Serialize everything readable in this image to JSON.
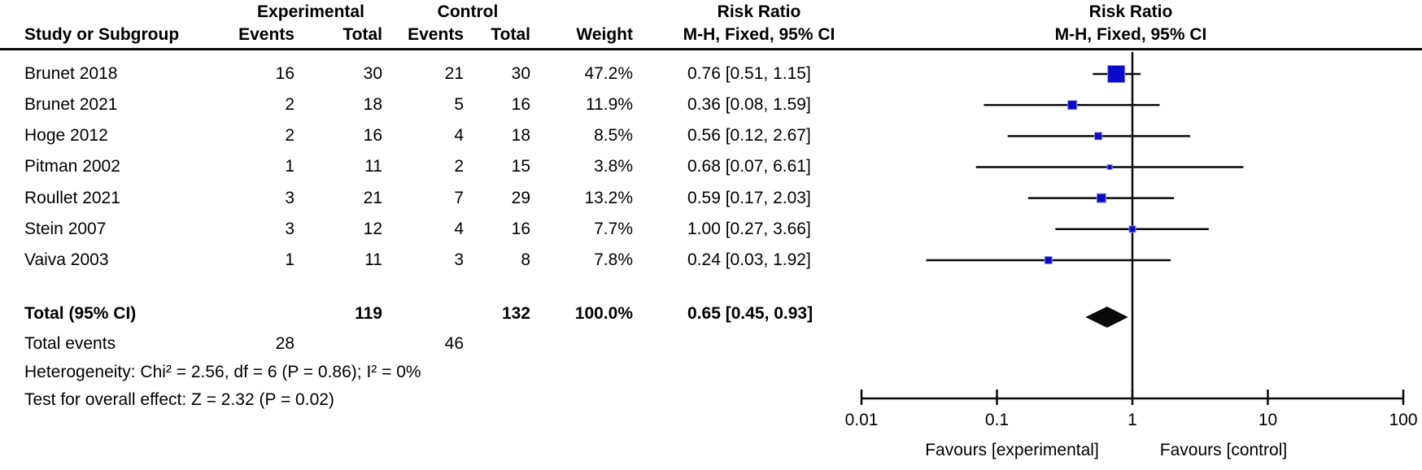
{
  "table": {
    "headers": {
      "experimental": "Experimental",
      "control": "Control",
      "risk_ratio_left": "Risk Ratio",
      "risk_ratio_right": "Risk Ratio",
      "study_or_subgroup": "Study or Subgroup",
      "events_experimental": "Events",
      "total_experimental": "Total",
      "events_control": "Events",
      "total_control": "Total",
      "weight": "Weight",
      "mh_fixed_left": "M-H, Fixed, 95% CI",
      "mh_fixed_right": "M-H, Fixed, 95% CI"
    },
    "rows": [
      {
        "study": "Brunet 2018",
        "e_events": "16",
        "e_total": "30",
        "c_events": "21",
        "c_total": "30",
        "weight": "47.2%",
        "ci_text": "0.76 [0.51, 1.15]"
      },
      {
        "study": "Brunet 2021",
        "e_events": "2",
        "e_total": "18",
        "c_events": "5",
        "c_total": "16",
        "weight": "11.9%",
        "ci_text": "0.36 [0.08, 1.59]"
      },
      {
        "study": "Hoge 2012",
        "e_events": "2",
        "e_total": "16",
        "c_events": "4",
        "c_total": "18",
        "weight": "8.5%",
        "ci_text": "0.56 [0.12, 2.67]"
      },
      {
        "study": "Pitman 2002",
        "e_events": "1",
        "e_total": "11",
        "c_events": "2",
        "c_total": "15",
        "weight": "3.8%",
        "ci_text": "0.68 [0.07, 6.61]"
      },
      {
        "study": "Roullet 2021",
        "e_events": "3",
        "e_total": "21",
        "c_events": "7",
        "c_total": "29",
        "weight": "13.2%",
        "ci_text": "0.59 [0.17, 2.03]"
      },
      {
        "study": "Stein 2007",
        "e_events": "3",
        "e_total": "12",
        "c_events": "4",
        "c_total": "16",
        "weight": "7.7%",
        "ci_text": "1.00 [0.27, 3.66]"
      },
      {
        "study": "Vaiva 2003",
        "e_events": "1",
        "e_total": "11",
        "c_events": "3",
        "c_total": "8",
        "weight": "7.8%",
        "ci_text": "0.24 [0.03, 1.92]"
      }
    ],
    "total": {
      "label": "Total (95% CI)",
      "e_total": "119",
      "c_total": "132",
      "weight": "100.0%",
      "ci_text": "0.65 [0.45, 0.93]"
    },
    "total_events": {
      "label": "Total events",
      "e": "28",
      "c": "46"
    },
    "heterogeneity": "Heterogeneity: Chi² = 2.56, df = 6 (P = 0.86); I² = 0%",
    "overall_effect": "Test for overall effect: Z = 2.32 (P = 0.02)"
  },
  "chart_data": {
    "type": "forest",
    "effect_measure": "Risk Ratio (M-H, Fixed, 95% CI)",
    "x_scale": "log",
    "xlim": [
      0.01,
      100
    ],
    "null_line": 1,
    "x_tick_values": [
      0.01,
      0.1,
      1,
      10,
      100
    ],
    "x_tick_labels": [
      "0.01",
      "0.1",
      "1",
      "10",
      "100"
    ],
    "axis_footer_left": "Favours [experimental]",
    "axis_footer_right": "Favours [control]",
    "marker_color": "#0a0ac8",
    "marker_edge_color": "#8f8fdd",
    "line_color": "#0a0a0a",
    "diamond_color": "#0a0a0a",
    "studies": [
      {
        "name": "Brunet 2018",
        "rr": 0.76,
        "lo": 0.51,
        "hi": 1.15,
        "weight_pct": 47.2
      },
      {
        "name": "Brunet 2021",
        "rr": 0.36,
        "lo": 0.08,
        "hi": 1.59,
        "weight_pct": 11.9
      },
      {
        "name": "Hoge 2012",
        "rr": 0.56,
        "lo": 0.12,
        "hi": 2.67,
        "weight_pct": 8.5
      },
      {
        "name": "Pitman 2002",
        "rr": 0.68,
        "lo": 0.07,
        "hi": 6.61,
        "weight_pct": 3.8
      },
      {
        "name": "Roullet 2021",
        "rr": 0.59,
        "lo": 0.17,
        "hi": 2.03,
        "weight_pct": 13.2
      },
      {
        "name": "Stein 2007",
        "rr": 1.0,
        "lo": 0.27,
        "hi": 3.66,
        "weight_pct": 7.7
      },
      {
        "name": "Vaiva 2003",
        "rr": 0.24,
        "lo": 0.03,
        "hi": 1.92,
        "weight_pct": 7.8
      }
    ],
    "overall": {
      "name": "Total (95% CI)",
      "rr": 0.65,
      "lo": 0.45,
      "hi": 0.93
    }
  }
}
